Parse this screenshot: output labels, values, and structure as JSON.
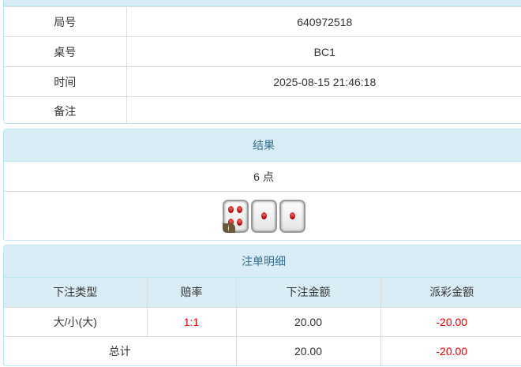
{
  "info": [
    {
      "label": "局号",
      "value": "640972518"
    },
    {
      "label": "桌号",
      "value": "BC1"
    },
    {
      "label": "时间",
      "value": "2025-08-15 21:46:18"
    },
    {
      "label": "备注",
      "value": ""
    }
  ],
  "result": {
    "title": "结果",
    "points": "6 点",
    "dice": [
      4,
      1,
      1
    ],
    "badge": "i"
  },
  "bets": {
    "title": "注单明细",
    "headers": [
      "下注类型",
      "赔率",
      "下注金额",
      "派彩金额"
    ],
    "rows": [
      {
        "type": "大/小(大)",
        "odds": "1:1",
        "amount": "20.00",
        "payout": "-20.00"
      }
    ],
    "total": {
      "label": "总计",
      "amount": "20.00",
      "payout": "-20.00"
    }
  },
  "colors": {
    "header_bg": "#d9edf7",
    "header_text": "#31708f",
    "negative": "#ee0000"
  }
}
